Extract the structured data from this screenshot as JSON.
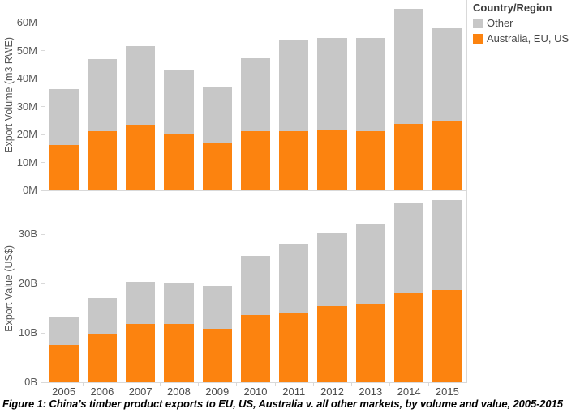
{
  "legend": {
    "title": "Country/Region",
    "items": [
      {
        "label": "Other",
        "color": "#C7C7C7"
      },
      {
        "label": "Australia, EU, US",
        "color": "#FC830F"
      }
    ]
  },
  "caption": "Figure 1: China’s timber product exports to EU, US, Australia v. all other markets, by volume and value, 2005-2015",
  "chart_data": [
    {
      "type": "bar",
      "stacked": true,
      "ylabel": "Export Volume (m3 RWE)",
      "unit": "million m3 RWE",
      "categories": [
        "2005",
        "2006",
        "2007",
        "2008",
        "2009",
        "2010",
        "2011",
        "2012",
        "2013",
        "2014",
        "2015"
      ],
      "series": [
        {
          "name": "Australia, EU, US",
          "color": "#FC830F",
          "values": [
            16.3,
            21.2,
            23.6,
            20.0,
            16.9,
            21.1,
            21.1,
            21.9,
            21.1,
            23.9,
            24.6
          ]
        },
        {
          "name": "Other",
          "color": "#C7C7C7",
          "values": [
            20.0,
            25.8,
            28.0,
            23.3,
            20.3,
            26.3,
            32.5,
            32.7,
            33.5,
            41.1,
            33.7
          ]
        }
      ],
      "totals": [
        36.3,
        47.0,
        51.6,
        43.3,
        37.2,
        47.4,
        53.6,
        54.6,
        54.6,
        65.0,
        58.3
      ],
      "ylim": [
        0,
        68.2
      ],
      "yticks": {
        "labels": [
          "0M",
          "10M",
          "20M",
          "30M",
          "40M",
          "50M",
          "60M"
        ],
        "values": [
          0,
          10,
          20,
          30,
          40,
          50,
          60
        ]
      },
      "grid": false,
      "legend_position": "top-right"
    },
    {
      "type": "bar",
      "stacked": true,
      "ylabel": "Export Value (US$)",
      "unit": "US$ billions",
      "categories": [
        "2005",
        "2006",
        "2007",
        "2008",
        "2009",
        "2010",
        "2011",
        "2012",
        "2013",
        "2014",
        "2015"
      ],
      "series": [
        {
          "name": "Australia, EU, US",
          "color": "#FC830F",
          "values": [
            7.6,
            9.9,
            11.9,
            11.8,
            10.8,
            13.6,
            13.9,
            15.4,
            15.9,
            18.0,
            18.8
          ]
        },
        {
          "name": "Other",
          "color": "#C7C7C7",
          "values": [
            5.5,
            7.2,
            8.4,
            8.4,
            8.8,
            12.1,
            14.2,
            14.9,
            16.2,
            18.3,
            18.1
          ]
        }
      ],
      "totals": [
        13.1,
        17.1,
        20.3,
        20.2,
        19.6,
        25.7,
        28.1,
        30.3,
        32.1,
        36.3,
        36.9
      ],
      "ylim": [
        0,
        38.1
      ],
      "yticks": {
        "labels": [
          "0B",
          "10B",
          "20B",
          "30B"
        ],
        "values": [
          0,
          10,
          20,
          30
        ]
      },
      "grid": false
    }
  ]
}
